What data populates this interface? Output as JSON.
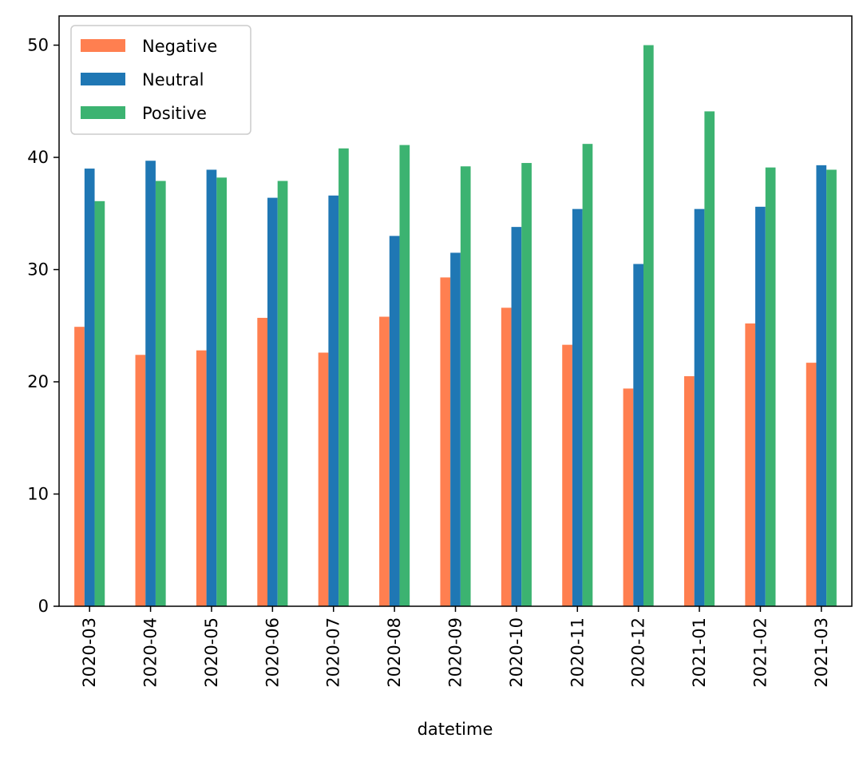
{
  "chart_data": {
    "type": "bar",
    "categories": [
      "2020-03",
      "2020-04",
      "2020-05",
      "2020-06",
      "2020-07",
      "2020-08",
      "2020-09",
      "2020-10",
      "2020-11",
      "2020-12",
      "2021-01",
      "2021-02",
      "2021-03"
    ],
    "series": [
      {
        "name": "Negative",
        "color": "#ff7f50",
        "values": [
          24.9,
          22.4,
          22.8,
          25.7,
          22.6,
          25.8,
          29.3,
          26.6,
          23.3,
          19.4,
          20.5,
          25.2,
          21.7
        ]
      },
      {
        "name": "Neutral",
        "color": "#1f77b4",
        "values": [
          39.0,
          39.7,
          38.9,
          36.4,
          36.6,
          33.0,
          31.5,
          33.8,
          35.4,
          30.5,
          35.4,
          35.6,
          39.3
        ]
      },
      {
        "name": "Positive",
        "color": "#3cb371",
        "values": [
          36.1,
          37.9,
          38.2,
          37.9,
          40.8,
          41.1,
          39.2,
          39.5,
          41.2,
          50.0,
          44.1,
          39.1,
          38.9
        ]
      }
    ],
    "title": "",
    "xlabel": "datetime",
    "ylabel": "",
    "ylim": [
      0,
      52.6
    ],
    "yticks": [
      0,
      10,
      20,
      30,
      40,
      50
    ],
    "grid": false,
    "legend_position": "top-left"
  }
}
